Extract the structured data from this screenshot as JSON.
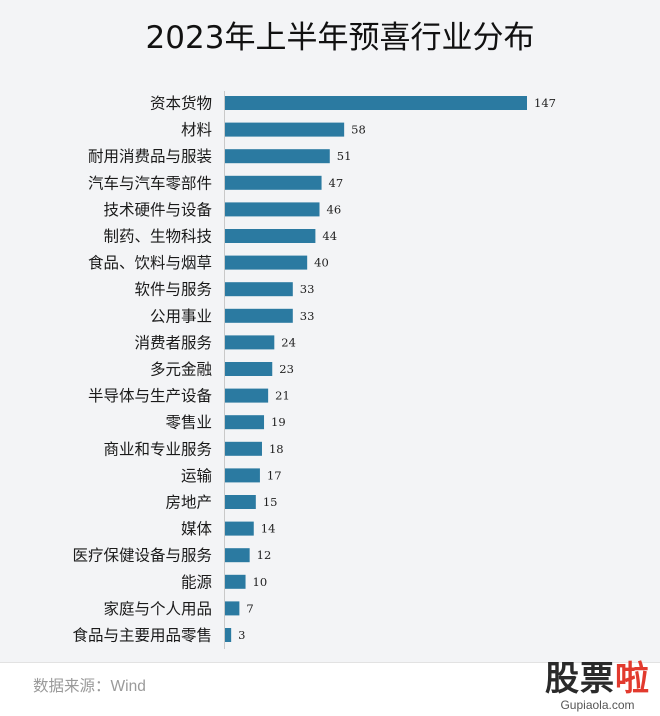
{
  "chart_data": {
    "type": "bar",
    "orientation": "horizontal",
    "title": "2023年上半年预喜行业分布",
    "categories": [
      "资本货物",
      "材料",
      "耐用消费品与服装",
      "汽车与汽车零部件",
      "技术硬件与设备",
      "制药、生物科技",
      "食品、饮料与烟草",
      "软件与服务",
      "公用事业",
      "消费者服务",
      "多元金融",
      "半导体与生产设备",
      "零售业",
      "商业和专业服务",
      "运输",
      "房地产",
      "媒体",
      "医疗保健设备与服务",
      "能源",
      "家庭与个人用品",
      "食品与主要用品零售"
    ],
    "values": [
      147,
      58,
      51,
      47,
      46,
      44,
      40,
      33,
      33,
      24,
      23,
      21,
      19,
      18,
      17,
      15,
      14,
      12,
      10,
      7,
      3
    ],
    "xlim": [
      0,
      147
    ],
    "grid": false,
    "legend": "none",
    "bar_color": "#2b7aa1"
  },
  "source": "数据来源：Wind",
  "watermark": {
    "logo_dark": "股票",
    "logo_red": "啦",
    "url": "Gupiaola.com"
  }
}
